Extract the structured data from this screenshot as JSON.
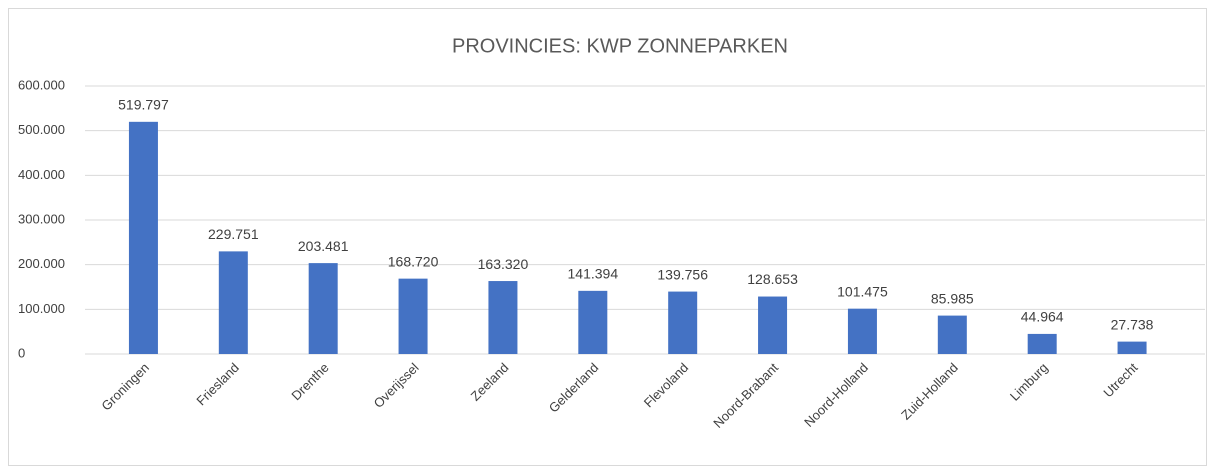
{
  "chart_data": {
    "type": "bar",
    "title": "PROVINCIES: KWP ZONNEPARKEN",
    "categories": [
      "Groningen",
      "Friesland",
      "Drenthe",
      "Overijssel",
      "Zeeland",
      "Gelderland",
      "Flevoland",
      "Noord-Brabant",
      "Noord-Holland",
      "Zuid-Holland",
      "Limburg",
      "Utrecht"
    ],
    "values": [
      519797,
      229751,
      203481,
      168720,
      163320,
      141394,
      139756,
      128653,
      101475,
      85985,
      44964,
      27738
    ],
    "value_labels": [
      "519.797",
      "229.751",
      "203.481",
      "168.720",
      "163.320",
      "141.394",
      "139.756",
      "128.653",
      "101.475",
      "85.985",
      "44.964",
      "27.738"
    ],
    "color": "#4472c4",
    "ylim": [
      0,
      600000
    ],
    "yticks": [
      0,
      {
        "value": 100000,
        "label": "100.000"
      },
      {
        "value": 200000,
        "label": "200.000"
      },
      {
        "value": 300000,
        "label": "300.000"
      },
      {
        "value": 400000,
        "label": "400.000"
      },
      {
        "value": 500000,
        "label": "500.000"
      },
      {
        "value": 600000,
        "label": "600.000"
      }
    ],
    "grid": true
  }
}
